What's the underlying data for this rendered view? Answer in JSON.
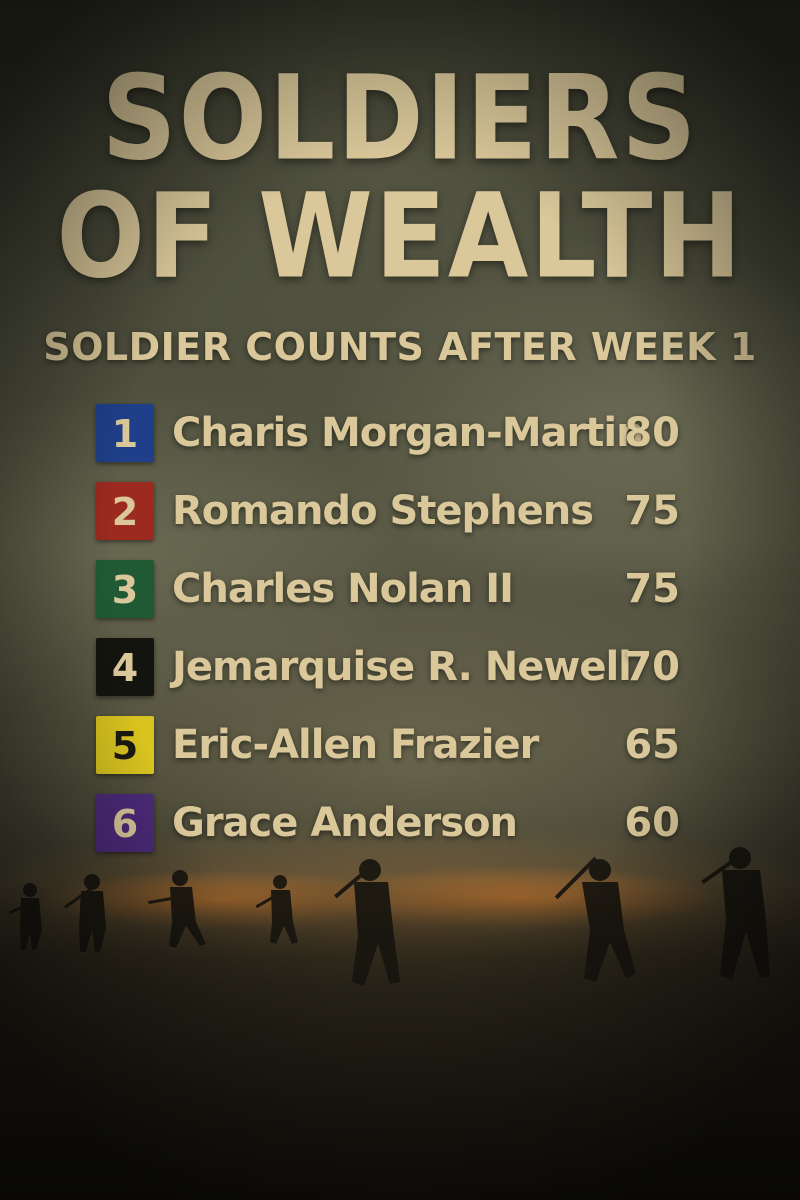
{
  "title": {
    "line1": "SOLDIERS",
    "line2": "OF WEALTH"
  },
  "subtitle": "SOLDIER COUNTS AFTER WEEK 1",
  "rankings": [
    {
      "rank": "1",
      "name": "Charis Morgan-Martin",
      "count": "80",
      "color": "#1f3f8a"
    },
    {
      "rank": "2",
      "name": "Romando Stephens",
      "count": "75",
      "color": "#9c2a1f"
    },
    {
      "rank": "3",
      "name": "Charles Nolan II",
      "count": "75",
      "color": "#1f5a35"
    },
    {
      "rank": "4",
      "name": "Jemarquise R. Newell",
      "count": "70",
      "color": "#14140f"
    },
    {
      "rank": "5",
      "name": "Eric-Allen Frazier",
      "count": "65",
      "color": "#d8c31f"
    },
    {
      "rank": "6",
      "name": "Grace Anderson",
      "count": "60",
      "color": "#4b2a78"
    }
  ],
  "colors": {
    "text": "#dac89a",
    "rank5_text": "#1a1a12"
  }
}
